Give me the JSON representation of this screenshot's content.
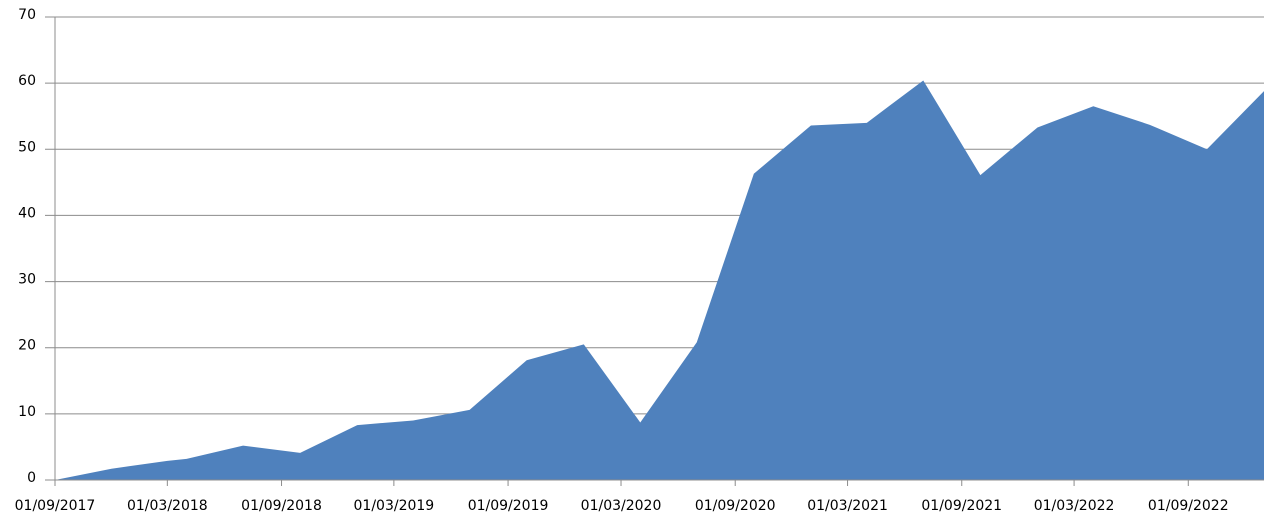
{
  "chart_data": {
    "type": "area",
    "x": [
      "01/09/2017",
      "01/12/2017",
      "01/03/2018",
      "01/04/2018",
      "01/07/2018",
      "01/10/2018",
      "01/01/2019",
      "01/04/2019",
      "01/07/2019",
      "01/10/2019",
      "01/01/2020",
      "01/04/2020",
      "01/07/2020",
      "01/10/2020",
      "01/01/2021",
      "01/04/2021",
      "01/07/2021",
      "01/10/2021",
      "01/01/2022",
      "01/04/2022",
      "01/07/2022",
      "01/10/2022",
      "01/01/2023"
    ],
    "series": [
      {
        "color": "#4f81bd",
        "values": [
          0,
          1.7,
          2.9,
          3.2,
          5.2,
          4.1,
          8.3,
          9.0,
          10.6,
          18.1,
          20.5,
          8.7,
          20.8,
          46.3,
          53.6,
          54.0,
          60.4,
          46.1,
          53.3,
          56.5,
          53.7,
          50.0,
          58.8
        ]
      }
    ],
    "xlim": [
      "01/09/2017",
      "01/01/2023"
    ],
    "xticks": [
      "01/09/2017",
      "01/03/2018",
      "01/09/2018",
      "01/03/2019",
      "01/09/2019",
      "01/03/2020",
      "01/09/2020",
      "01/03/2021",
      "01/09/2021",
      "01/03/2022",
      "01/09/2022"
    ],
    "ylim": [
      0,
      70
    ],
    "yticks": [
      0,
      10,
      20,
      30,
      40,
      50,
      60,
      70
    ],
    "grid": true
  }
}
